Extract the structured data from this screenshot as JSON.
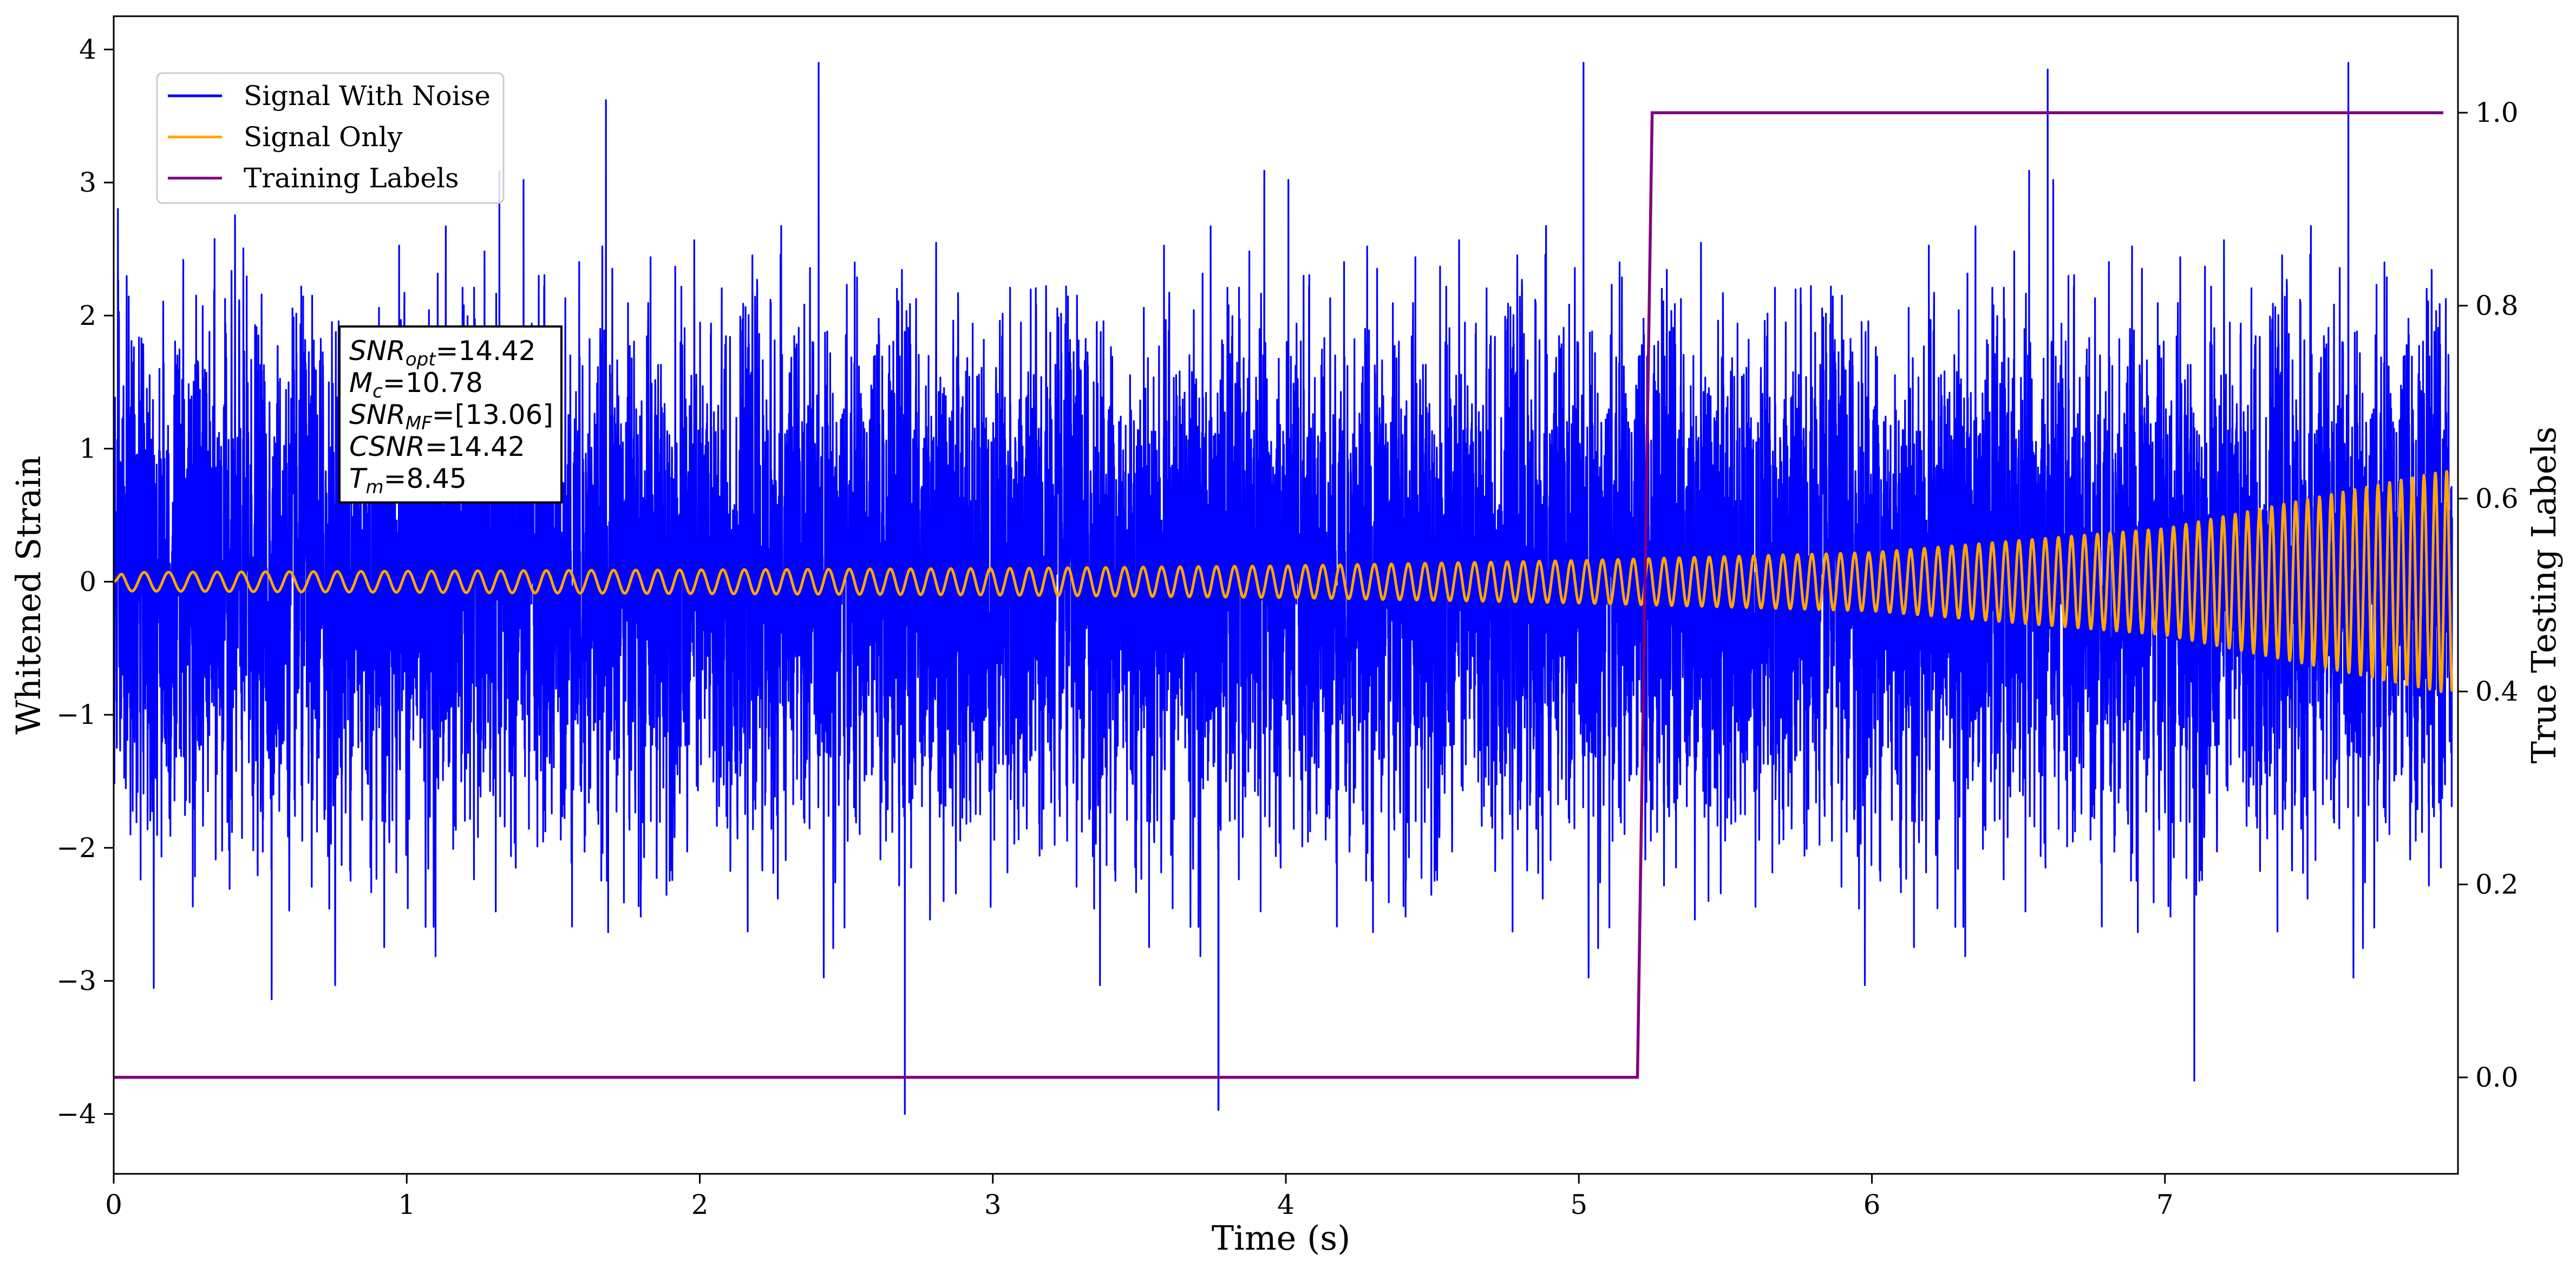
{
  "chart_data": {
    "type": "line",
    "xlabel": "Time (s)",
    "ylabel": "Whitened Strain",
    "ylabel_right": "True Testing Labels",
    "xlim": [
      0,
      8.0
    ],
    "ylim": [
      -4.45,
      4.25
    ],
    "ylim_right": [
      -0.1,
      1.1
    ],
    "x_ticks": [
      0,
      1,
      2,
      3,
      4,
      5,
      6,
      7
    ],
    "y_ticks": [
      -4,
      -3,
      -2,
      -1,
      0,
      1,
      2,
      3,
      4
    ],
    "y_ticks_right": [
      0.0,
      0.2,
      0.4,
      0.6,
      0.8,
      1.0
    ],
    "y_tick_labels": [
      "−4",
      "−3",
      "−2",
      "−1",
      "0",
      "1",
      "2",
      "3",
      "4"
    ],
    "y_tick_labels_right": [
      "0.0",
      "0.2",
      "0.4",
      "0.6",
      "0.8",
      "1.0"
    ],
    "legend": {
      "placement": "top-left",
      "entries": [
        "Signal With Noise",
        "Signal Only",
        "Training Labels"
      ]
    },
    "annotation": {
      "lines": [
        {
          "base": "SNR",
          "sub": "opt",
          "value": "=14.42"
        },
        {
          "base": "M",
          "sub": "c",
          "value": "=10.78"
        },
        {
          "base": "SNR",
          "sub": "MF",
          "value": "=[13.06]"
        },
        {
          "base": "CSNR",
          "sub": "",
          "value": "=14.42"
        },
        {
          "base": "T",
          "sub": "m",
          "value": "=8.45"
        }
      ]
    },
    "series": [
      {
        "name": "Signal With Noise",
        "color": "#0000ff",
        "description": "noisy whitened strain, roughly spanning -4 to 4",
        "sample_count": 16000,
        "amplitude_std": 1.05,
        "notable_extremes": [
          {
            "x": 2.7,
            "y": -4.0
          },
          {
            "x": 3.77,
            "y": -3.97
          },
          {
            "x": 6.6,
            "y": 3.85
          },
          {
            "x": 1.68,
            "y": 3.62
          },
          {
            "x": 7.1,
            "y": -3.75
          }
        ]
      },
      {
        "name": "Signal Only",
        "color": "#ffa500",
        "description": "chirp signal, amplitude growing toward end",
        "points": [
          {
            "x": 0.0,
            "amplitude": 0.07
          },
          {
            "x": 1.0,
            "amplitude": 0.08
          },
          {
            "x": 2.0,
            "amplitude": 0.09
          },
          {
            "x": 3.0,
            "amplitude": 0.1
          },
          {
            "x": 4.0,
            "amplitude": 0.12
          },
          {
            "x": 5.0,
            "amplitude": 0.16
          },
          {
            "x": 6.0,
            "amplitude": 0.22
          },
          {
            "x": 7.0,
            "amplitude": 0.4
          },
          {
            "x": 7.95,
            "amplitude": 0.83
          }
        ],
        "freq_start_hz": 12,
        "freq_end_hz": 26
      },
      {
        "name": "Training Labels",
        "color": "#800080",
        "axis": "right",
        "points": [
          {
            "x": 0.0,
            "y": 0.0
          },
          {
            "x": 5.2,
            "y": 0.0
          },
          {
            "x": 5.25,
            "y": 1.0
          },
          {
            "x": 7.95,
            "y": 1.0
          }
        ]
      }
    ]
  }
}
